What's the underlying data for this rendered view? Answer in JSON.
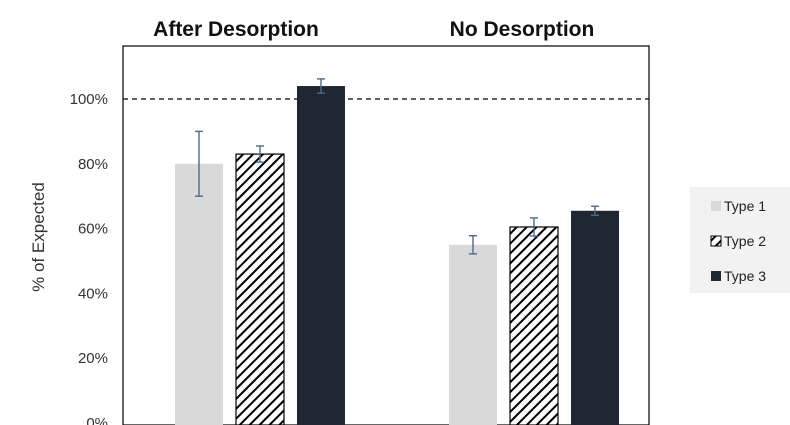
{
  "chart_data": {
    "type": "bar",
    "categories": [
      "After Desorption",
      "No Desorption"
    ],
    "ylabel": "% of Expected",
    "ylim": [
      0,
      115
    ],
    "yticks": [
      0,
      20,
      40,
      60,
      80,
      100
    ],
    "ytick_labels": [
      "0%",
      "20%",
      "40%",
      "60%",
      "80%",
      "100%"
    ],
    "reference_line": {
      "value": 100,
      "style": "dashed"
    },
    "series": [
      {
        "name": "Type 1",
        "pattern": "solid-light",
        "color": "#d9d9d9",
        "values": [
          80,
          55
        ],
        "errors": [
          10,
          2.8
        ]
      },
      {
        "name": "Type 2",
        "pattern": "diagonal-hatch",
        "color": "#000000",
        "values": [
          83,
          60.5
        ],
        "errors": [
          2.5,
          2.8
        ]
      },
      {
        "name": "Type 3",
        "pattern": "solid-dark",
        "color": "#1f2733",
        "values": [
          104,
          65.5
        ],
        "errors": [
          2.2,
          1.4
        ]
      }
    ],
    "error_bar_color": "#4a6b8f",
    "legend": {
      "position": "right"
    },
    "grid": false
  }
}
